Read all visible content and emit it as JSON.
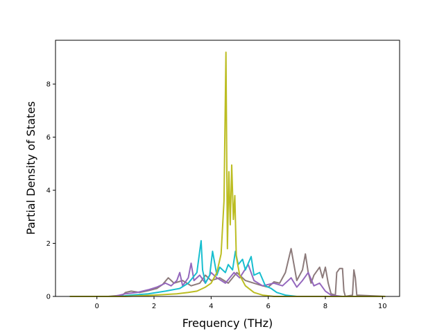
{
  "chart_data": {
    "type": "line",
    "title": "",
    "xlabel": "Frequency (THz)",
    "ylabel": "Partial Density of States",
    "xlim": [
      -1.45,
      10.6
    ],
    "ylim": [
      0,
      9.65
    ],
    "xticks": [
      0,
      2,
      4,
      6,
      8,
      10
    ],
    "yticks": [
      0,
      2,
      4,
      6,
      8
    ],
    "grid": false,
    "legend": "none",
    "series": [
      {
        "color": "#8c7a7a",
        "points": [
          [
            -0.95,
            0
          ],
          [
            0.4,
            0.0
          ],
          [
            0.9,
            0.05
          ],
          [
            1.0,
            0.15
          ],
          [
            1.2,
            0.2
          ],
          [
            1.5,
            0.15
          ],
          [
            1.8,
            0.22
          ],
          [
            2.1,
            0.3
          ],
          [
            2.3,
            0.45
          ],
          [
            2.5,
            0.7
          ],
          [
            2.7,
            0.5
          ],
          [
            3.0,
            0.6
          ],
          [
            3.3,
            0.4
          ],
          [
            3.6,
            0.5
          ],
          [
            3.8,
            0.8
          ],
          [
            4.0,
            0.6
          ],
          [
            4.3,
            0.7
          ],
          [
            4.6,
            0.5
          ],
          [
            4.9,
            0.9
          ],
          [
            5.2,
            0.6
          ],
          [
            5.5,
            0.5
          ],
          [
            5.8,
            0.4
          ],
          [
            6.0,
            0.35
          ],
          [
            6.2,
            0.55
          ],
          [
            6.4,
            0.5
          ],
          [
            6.6,
            0.9
          ],
          [
            6.8,
            1.8
          ],
          [
            6.9,
            1.2
          ],
          [
            7.0,
            0.6
          ],
          [
            7.2,
            1.0
          ],
          [
            7.3,
            1.6
          ],
          [
            7.4,
            0.9
          ],
          [
            7.5,
            0.5
          ],
          [
            7.6,
            0.8
          ],
          [
            7.8,
            1.1
          ],
          [
            7.9,
            0.7
          ],
          [
            8.0,
            1.1
          ],
          [
            8.1,
            0.5
          ],
          [
            8.2,
            0.1
          ],
          [
            8.35,
            0.05
          ],
          [
            8.4,
            0.9
          ],
          [
            8.5,
            1.05
          ],
          [
            8.6,
            1.05
          ],
          [
            8.65,
            0.2
          ],
          [
            8.7,
            0.0
          ],
          [
            8.95,
            0.05
          ],
          [
            9.0,
            1.0
          ],
          [
            9.05,
            0.7
          ],
          [
            9.1,
            0.05
          ],
          [
            10.1,
            0
          ]
        ]
      },
      {
        "color": "#9467bd",
        "points": [
          [
            -0.95,
            0
          ],
          [
            0.6,
            0.0
          ],
          [
            1.0,
            0.1
          ],
          [
            1.4,
            0.15
          ],
          [
            1.8,
            0.25
          ],
          [
            2.1,
            0.35
          ],
          [
            2.4,
            0.5
          ],
          [
            2.6,
            0.4
          ],
          [
            2.8,
            0.6
          ],
          [
            2.9,
            0.9
          ],
          [
            3.0,
            0.4
          ],
          [
            3.2,
            0.7
          ],
          [
            3.3,
            1.25
          ],
          [
            3.4,
            0.6
          ],
          [
            3.6,
            0.8
          ],
          [
            3.8,
            0.5
          ],
          [
            4.0,
            0.9
          ],
          [
            4.2,
            0.7
          ],
          [
            4.5,
            0.5
          ],
          [
            4.8,
            0.9
          ],
          [
            5.0,
            0.7
          ],
          [
            5.3,
            1.2
          ],
          [
            5.5,
            0.6
          ],
          [
            5.8,
            0.4
          ],
          [
            6.2,
            0.5
          ],
          [
            6.5,
            0.4
          ],
          [
            6.8,
            0.7
          ],
          [
            7.0,
            0.35
          ],
          [
            7.2,
            0.6
          ],
          [
            7.4,
            0.9
          ],
          [
            7.6,
            0.4
          ],
          [
            7.8,
            0.5
          ],
          [
            8.0,
            0.2
          ],
          [
            8.2,
            0.05
          ],
          [
            8.6,
            0.0
          ],
          [
            10.1,
            0
          ]
        ]
      },
      {
        "color": "#17becf",
        "points": [
          [
            -0.95,
            0
          ],
          [
            0.8,
            0.0
          ],
          [
            1.2,
            0.05
          ],
          [
            1.8,
            0.1
          ],
          [
            2.4,
            0.2
          ],
          [
            2.9,
            0.3
          ],
          [
            3.2,
            0.5
          ],
          [
            3.5,
            0.9
          ],
          [
            3.65,
            2.1
          ],
          [
            3.7,
            1.0
          ],
          [
            3.8,
            0.5
          ],
          [
            3.95,
            0.8
          ],
          [
            4.05,
            1.7
          ],
          [
            4.2,
            0.8
          ],
          [
            4.3,
            1.1
          ],
          [
            4.5,
            0.9
          ],
          [
            4.6,
            1.2
          ],
          [
            4.75,
            1.0
          ],
          [
            4.85,
            1.7
          ],
          [
            4.95,
            1.2
          ],
          [
            5.1,
            1.4
          ],
          [
            5.2,
            1.0
          ],
          [
            5.4,
            1.5
          ],
          [
            5.5,
            0.8
          ],
          [
            5.7,
            0.9
          ],
          [
            5.9,
            0.4
          ],
          [
            6.1,
            0.3
          ],
          [
            6.3,
            0.15
          ],
          [
            6.6,
            0.05
          ],
          [
            7.0,
            0.0
          ],
          [
            10.1,
            0
          ]
        ]
      },
      {
        "color": "#bcbd22",
        "points": [
          [
            -0.95,
            0
          ],
          [
            1.0,
            0.0
          ],
          [
            2.0,
            0.05
          ],
          [
            2.8,
            0.1
          ],
          [
            3.2,
            0.15
          ],
          [
            3.5,
            0.2
          ],
          [
            3.8,
            0.35
          ],
          [
            4.0,
            0.5
          ],
          [
            4.2,
            0.9
          ],
          [
            4.35,
            1.6
          ],
          [
            4.45,
            3.6
          ],
          [
            4.52,
            9.2
          ],
          [
            4.57,
            1.8
          ],
          [
            4.62,
            4.7
          ],
          [
            4.67,
            2.7
          ],
          [
            4.72,
            4.95
          ],
          [
            4.78,
            2.9
          ],
          [
            4.83,
            3.8
          ],
          [
            4.88,
            1.5
          ],
          [
            5.0,
            0.8
          ],
          [
            5.2,
            0.4
          ],
          [
            5.5,
            0.15
          ],
          [
            5.8,
            0.05
          ],
          [
            6.2,
            0.0
          ],
          [
            10.1,
            0
          ]
        ]
      }
    ]
  }
}
